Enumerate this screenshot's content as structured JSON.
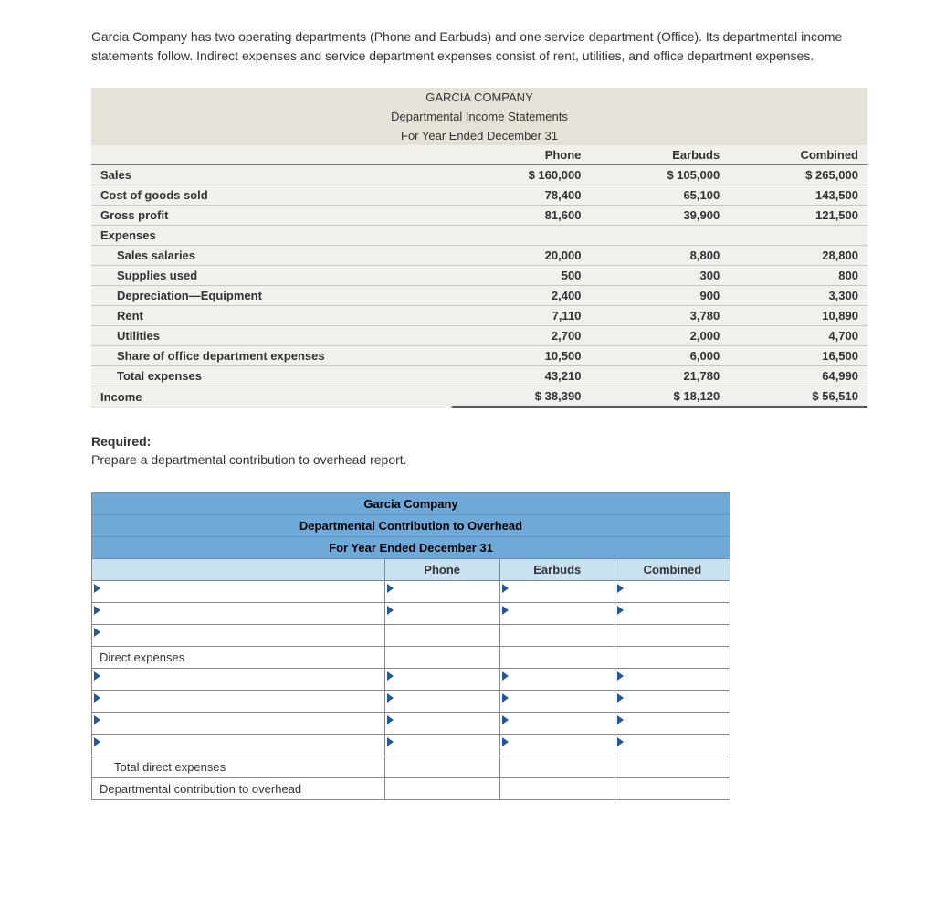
{
  "intro": "Garcia Company has two operating departments (Phone and Earbuds) and one service department (Office). Its departmental income statements follow. Indirect expenses and service department expenses consist of rent, utilities, and office department expenses.",
  "income_table": {
    "title1": "GARCIA COMPANY",
    "title2": "Departmental Income Statements",
    "title3": "For Year Ended December 31",
    "col_headers": [
      "Phone",
      "Earbuds",
      "Combined"
    ],
    "rows": [
      {
        "label": "Sales",
        "bold": true,
        "indent": 0,
        "vals": [
          "$ 160,000",
          "$ 105,000",
          "$ 265,000"
        ]
      },
      {
        "label": "Cost of goods sold",
        "bold": true,
        "indent": 0,
        "vals": [
          "78,400",
          "65,100",
          "143,500"
        ]
      },
      {
        "label": "Gross profit",
        "bold": true,
        "indent": 0,
        "vals": [
          "81,600",
          "39,900",
          "121,500"
        ],
        "top_rule": true
      },
      {
        "label": "Expenses",
        "bold": true,
        "indent": 0,
        "vals": [
          "",
          "",
          ""
        ]
      },
      {
        "label": "Sales salaries",
        "bold": true,
        "indent": 1,
        "vals": [
          "20,000",
          "8,800",
          "28,800"
        ]
      },
      {
        "label": "Supplies used",
        "bold": true,
        "indent": 1,
        "vals": [
          "500",
          "300",
          "800"
        ]
      },
      {
        "label": "Depreciation—Equipment",
        "bold": true,
        "indent": 1,
        "vals": [
          "2,400",
          "900",
          "3,300"
        ]
      },
      {
        "label": "Rent",
        "bold": true,
        "indent": 1,
        "vals": [
          "7,110",
          "3,780",
          "10,890"
        ]
      },
      {
        "label": "Utilities",
        "bold": true,
        "indent": 1,
        "vals": [
          "2,700",
          "2,000",
          "4,700"
        ]
      },
      {
        "label": "Share of office department expenses",
        "bold": true,
        "indent": 1,
        "vals": [
          "10,500",
          "6,000",
          "16,500"
        ]
      },
      {
        "label": "Total expenses",
        "bold": true,
        "indent": 1,
        "vals": [
          "43,210",
          "21,780",
          "64,990"
        ],
        "top_rule": true
      },
      {
        "label": "Income",
        "bold": true,
        "indent": 0,
        "vals": [
          "$ 38,390",
          "$ 18,120",
          "$ 56,510"
        ],
        "income": true
      }
    ]
  },
  "required_label": "Required:",
  "required_text": "Prepare a departmental contribution to overhead report.",
  "worksheet": {
    "title1": "Garcia Company",
    "title2": "Departmental Contribution to Overhead",
    "title3": "For Year Ended December 31",
    "col_headers": [
      "Phone",
      "Earbuds",
      "Combined"
    ],
    "static_labels": {
      "direct_expenses": "Direct expenses",
      "total_direct": "Total direct expenses",
      "dept_contribution": "Departmental contribution to overhead"
    }
  },
  "colors": {
    "hdr_bg": "#6fa9d8",
    "subhdr_bg": "#c8e1f0",
    "table_bg": "#f2f0ec",
    "border": "#888"
  }
}
